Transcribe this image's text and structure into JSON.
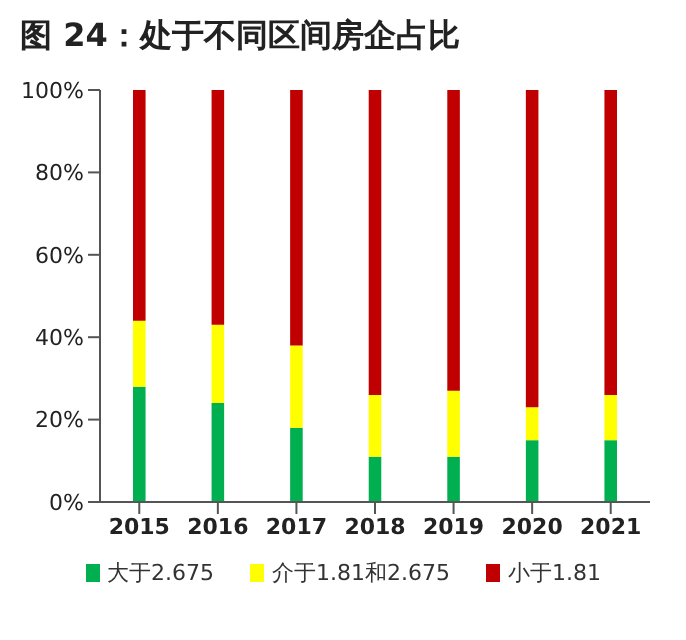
{
  "chart_data": {
    "type": "bar",
    "title": "图 24：处于不同区间房企占比",
    "stacked": true,
    "categories": [
      "2015",
      "2016",
      "2017",
      "2018",
      "2019",
      "2020",
      "2021"
    ],
    "series": [
      {
        "name": "大于2.675",
        "color": "#00b050",
        "values": [
          28,
          24,
          18,
          11,
          11,
          15,
          15
        ]
      },
      {
        "name": "介于1.81和2.675",
        "color": "#ffff00",
        "values": [
          16,
          19,
          20,
          15,
          16,
          8,
          11
        ]
      },
      {
        "name": "小于1.81",
        "color": "#c00000",
        "values": [
          56,
          57,
          62,
          74,
          73,
          77,
          74
        ]
      }
    ],
    "ylim": [
      0,
      100
    ],
    "yticks": [
      {
        "value": 0,
        "label": "0%"
      },
      {
        "value": 20,
        "label": "20%"
      },
      {
        "value": 40,
        "label": "40%"
      },
      {
        "value": 60,
        "label": "60%"
      },
      {
        "value": 80,
        "label": "80%"
      },
      {
        "value": 100,
        "label": "100%"
      }
    ],
    "grid": false,
    "legend": "bottom"
  }
}
